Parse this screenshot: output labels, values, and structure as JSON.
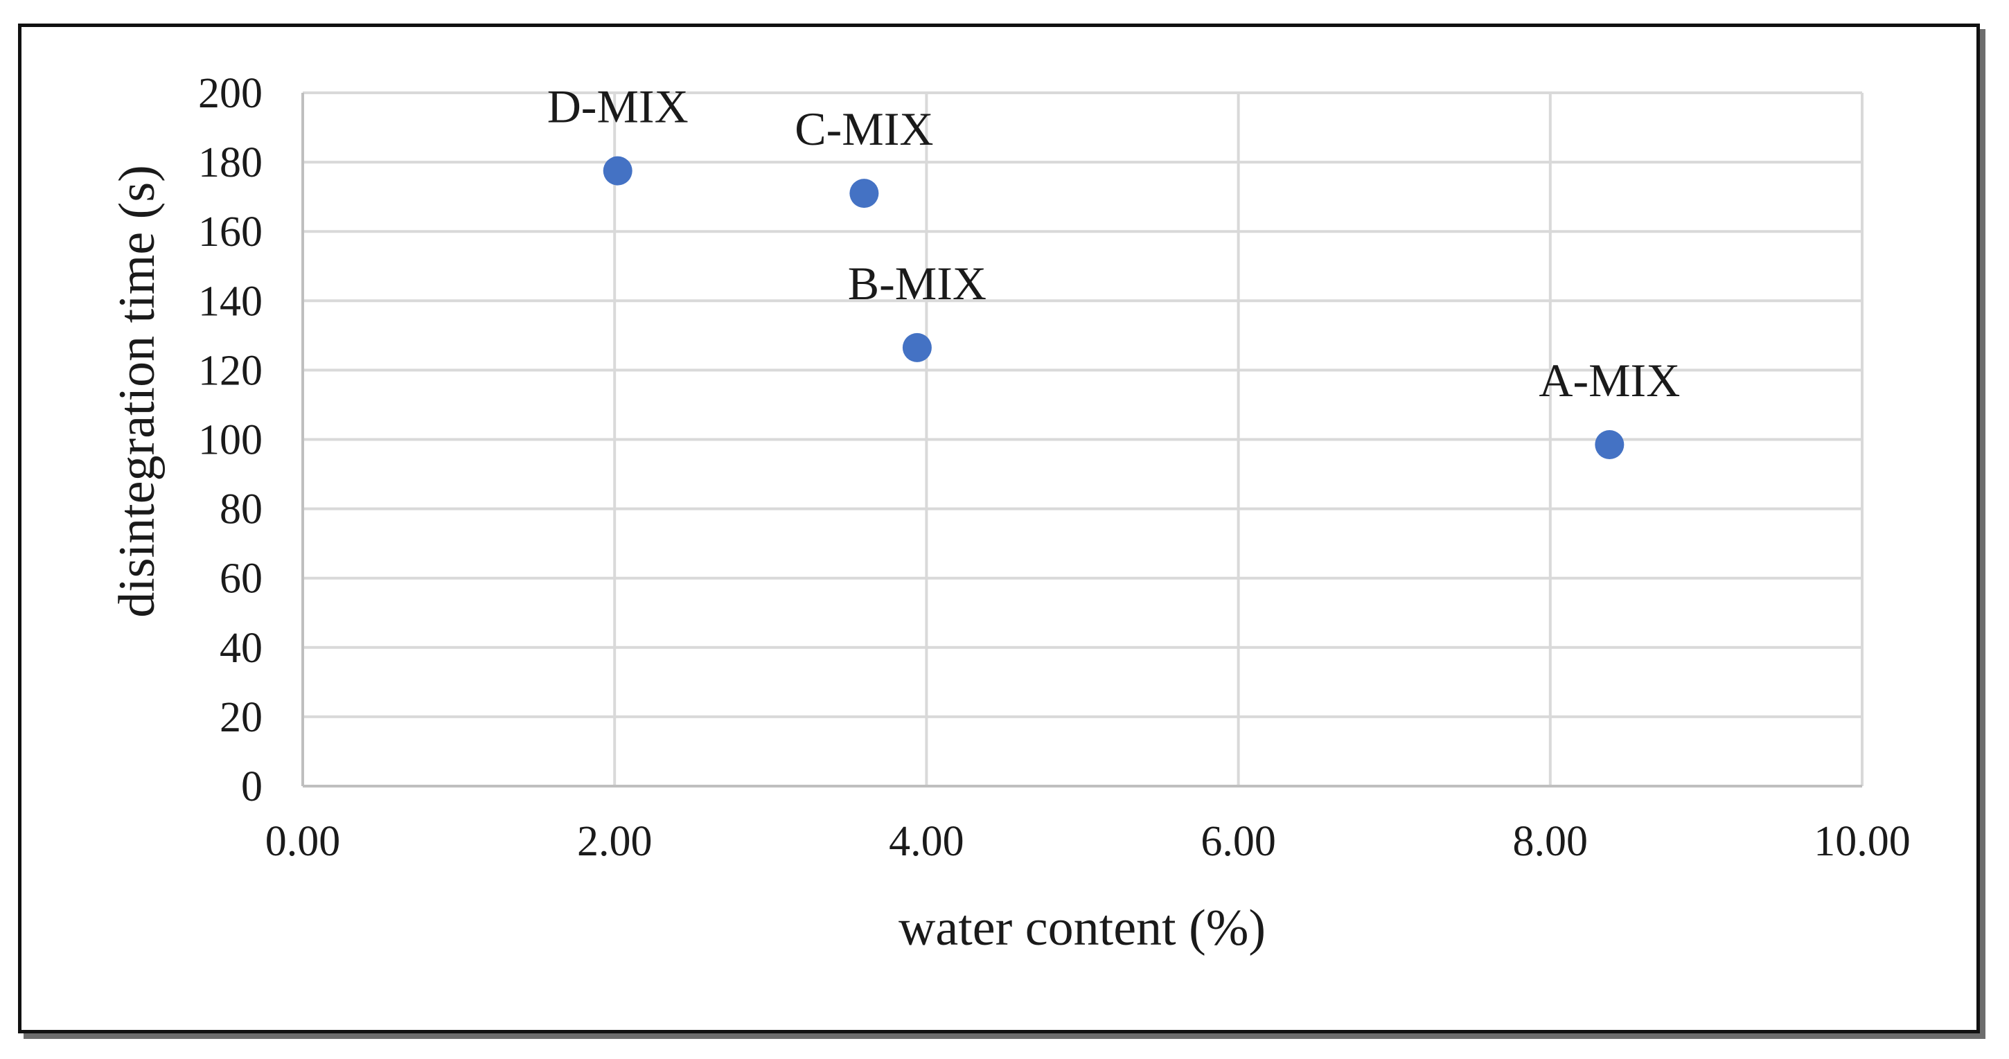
{
  "chart_data": {
    "type": "scatter",
    "title": "",
    "xlabel": "water content (%)",
    "ylabel": "disintegration time (s)",
    "xlim": [
      0,
      10
    ],
    "ylim": [
      0,
      200
    ],
    "x_ticks": [
      "0.00",
      "2.00",
      "4.00",
      "6.00",
      "8.00",
      "10.00"
    ],
    "y_ticks": [
      "0",
      "20",
      "40",
      "60",
      "80",
      "100",
      "120",
      "140",
      "160",
      "180",
      "200"
    ],
    "grid": true,
    "marker_color": "#4472C4",
    "points": [
      {
        "label": "D-MIX",
        "x": 2.02,
        "y": 177.5
      },
      {
        "label": "C-MIX",
        "x": 3.6,
        "y": 171
      },
      {
        "label": "B-MIX",
        "x": 3.94,
        "y": 126.5
      },
      {
        "label": "A-MIX",
        "x": 8.38,
        "y": 98.5
      }
    ]
  }
}
